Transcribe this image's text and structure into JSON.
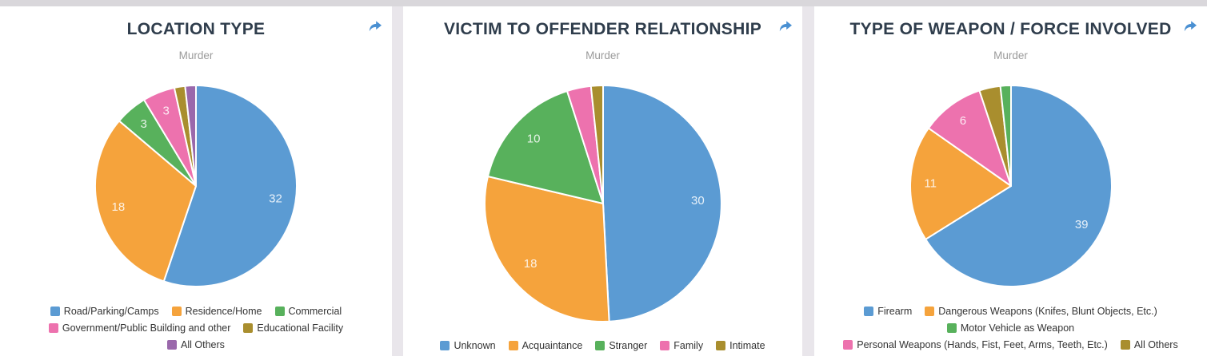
{
  "page": {
    "background_color": "#e9e6eb",
    "top_strip_color": "#d9d7db",
    "card_color": "#ffffff",
    "share_icon_color": "#4a90d2",
    "title_color": "#2f3d4c",
    "subtitle_color": "#9b9b9b"
  },
  "panels": [
    {
      "title": "LOCATION TYPE",
      "subtitle": "Murder",
      "share_icon": "share-arrow"
    },
    {
      "title": "VICTIM TO OFFENDER RELATIONSHIP",
      "subtitle": "Murder",
      "share_icon": "share-arrow"
    },
    {
      "title": "TYPE OF WEAPON / FORCE INVOLVED",
      "subtitle": "Murder",
      "share_icon": "share-arrow"
    }
  ],
  "chart_data": [
    {
      "type": "pie",
      "title": "LOCATION TYPE",
      "subtitle": "Murder",
      "legend_position": "bottom",
      "data_labels": "white values inside slices, shown only for values >= 3",
      "slice_order": "descending value, clockwise from top",
      "slices": [
        {
          "label": "Road/Parking/Camps",
          "value": 32,
          "color": "#5b9bd3"
        },
        {
          "label": "Residence/Home",
          "value": 18,
          "color": "#f5a33c"
        },
        {
          "label": "Commercial",
          "value": 3,
          "color": "#58b15c"
        },
        {
          "label": "Government/Public Building and other",
          "value": 3,
          "color": "#ed72ae"
        },
        {
          "label": "Educational Facility",
          "value": 1,
          "color": "#a98e2e"
        },
        {
          "label": "All Others",
          "value": 1,
          "color": "#9a68ab"
        }
      ],
      "legend_rows": [
        [
          0,
          1,
          2
        ],
        [
          3,
          4
        ],
        [
          5
        ]
      ]
    },
    {
      "type": "pie",
      "title": "VICTIM TO OFFENDER RELATIONSHIP",
      "subtitle": "Murder",
      "legend_position": "bottom",
      "data_labels": "white values inside slices, shown only for values >= 3",
      "slice_order": "descending value, clockwise from top",
      "slices": [
        {
          "label": "Unknown",
          "value": 30,
          "color": "#5b9bd3"
        },
        {
          "label": "Acquaintance",
          "value": 18,
          "color": "#f5a33c"
        },
        {
          "label": "Stranger",
          "value": 10,
          "color": "#58b15c"
        },
        {
          "label": "Family",
          "value": 2,
          "color": "#ed72ae"
        },
        {
          "label": "Intimate",
          "value": 1,
          "color": "#a98e2e"
        }
      ],
      "legend_rows": [
        [
          0,
          1,
          2,
          3,
          4
        ]
      ]
    },
    {
      "type": "pie",
      "title": "TYPE OF WEAPON / FORCE INVOLVED",
      "subtitle": "Murder",
      "legend_position": "bottom",
      "data_labels": "white values inside slices, shown only for values >= 3",
      "slice_order": "descending value, clockwise from top",
      "slices": [
        {
          "label": "Firearm",
          "value": 39,
          "color": "#5b9bd3"
        },
        {
          "label": "Dangerous Weapons (Knifes, Blunt Objects, Etc.)",
          "value": 11,
          "color": "#f5a33c"
        },
        {
          "label": "Motor Vehicle as Weapon",
          "value": 1,
          "color": "#58b15c"
        },
        {
          "label": "Personal Weapons (Hands, Fist, Feet, Arms, Teeth, Etc.)",
          "value": 6,
          "color": "#ed72ae"
        },
        {
          "label": "All Others",
          "value": 2,
          "color": "#a98e2e"
        }
      ],
      "legend_rows": [
        [
          0,
          1
        ],
        [
          2
        ],
        [
          3,
          4
        ]
      ]
    }
  ]
}
